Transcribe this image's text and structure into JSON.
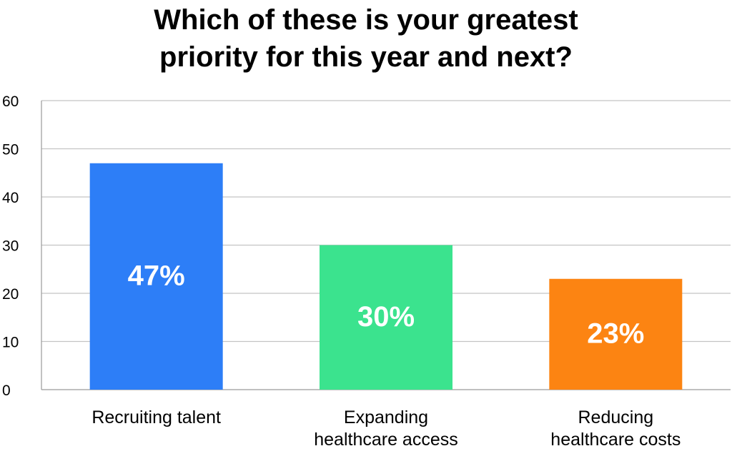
{
  "chart_data": {
    "type": "bar",
    "title_lines": [
      "Which of these is your greatest",
      "priority for this year and next?"
    ],
    "categories": [
      [
        "Recruiting talent"
      ],
      [
        "Expanding",
        "healthcare access"
      ],
      [
        "Reducing",
        "healthcare costs"
      ]
    ],
    "values": [
      47,
      30,
      23
    ],
    "data_labels": [
      "47%",
      "30%",
      "23%"
    ],
    "colors": [
      "#2D7EF7",
      "#3BE38E",
      "#FC8412"
    ],
    "ylim": [
      0,
      60
    ],
    "yticks": [
      "0",
      "10",
      "20",
      "30",
      "40",
      "50",
      "60"
    ],
    "grid": true,
    "legend": "none"
  }
}
